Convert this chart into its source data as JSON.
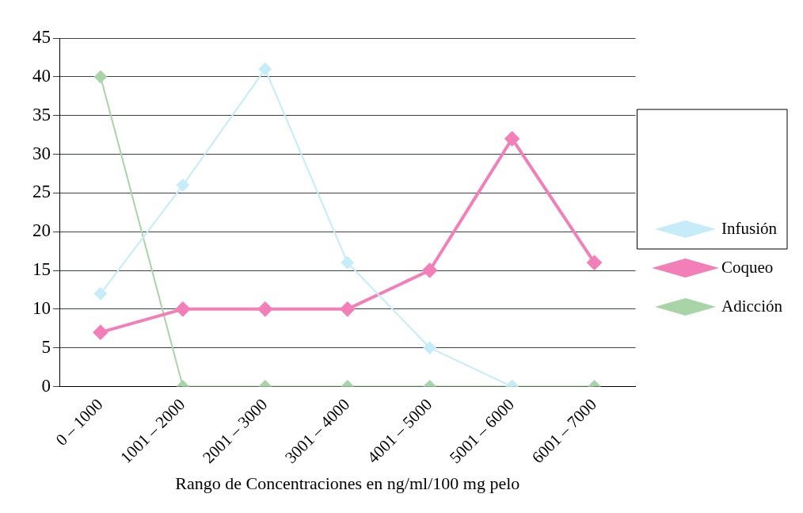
{
  "chart_data": {
    "type": "line",
    "xlabel": "Rango de Concentraciones en ng/ml/100 mg pelo",
    "categories": [
      "0 – 1000",
      "1001 – 2000",
      "2001 – 3000",
      "3001 – 4000",
      "4001 – 5000",
      "5001 – 6000",
      "6001 – 7000"
    ],
    "series": [
      {
        "name": "Infusión",
        "color": "#c5ecf8",
        "values": [
          12,
          26,
          41,
          16,
          5,
          0,
          null
        ]
      },
      {
        "name": "Coqueo",
        "color": "#f27fb8",
        "values": [
          7,
          10,
          10,
          10,
          15,
          32,
          16
        ]
      },
      {
        "name": "Adicción",
        "color": "#a8d4a8",
        "values": [
          40,
          0,
          0,
          0,
          0,
          0,
          0
        ]
      }
    ],
    "ylim": [
      0,
      45
    ],
    "yticks": [
      0,
      5,
      10,
      15,
      20,
      25,
      30,
      35,
      40,
      45
    ],
    "grid": "y",
    "legend": "right",
    "marker": "diamond",
    "line_style": "solid"
  }
}
